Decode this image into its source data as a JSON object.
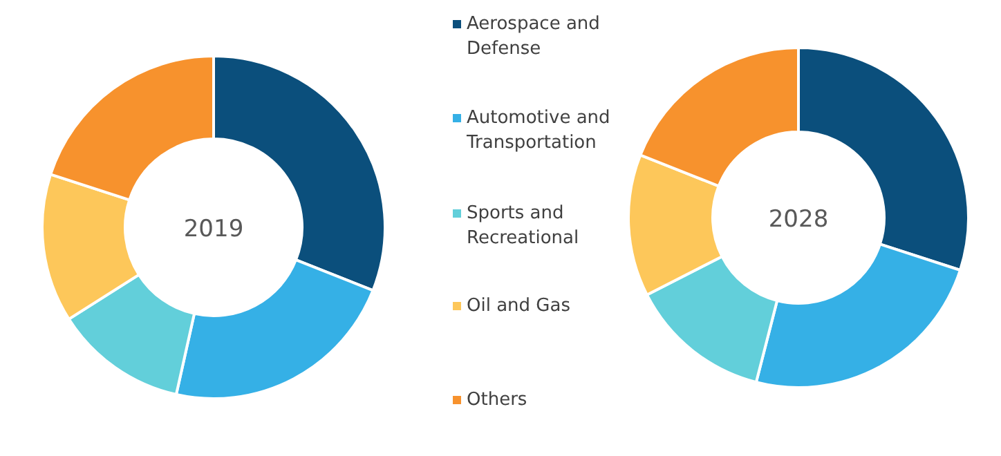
{
  "chart_data": {
    "type": "donut",
    "categories": [
      "Aerospace and Defense",
      "Automotive and Transportation",
      "Sports and Recreational",
      "Oil and Gas",
      "Others"
    ],
    "colors": [
      "#0b4f7c",
      "#35b0e6",
      "#62cfda",
      "#fdc75a",
      "#f7922d"
    ],
    "legend": "right",
    "series": [
      {
        "name": "2019",
        "values": [
          31,
          22.5,
          12.5,
          14,
          20
        ]
      },
      {
        "name": "2028",
        "values": [
          30,
          24,
          13.5,
          13.5,
          19
        ]
      }
    ]
  }
}
